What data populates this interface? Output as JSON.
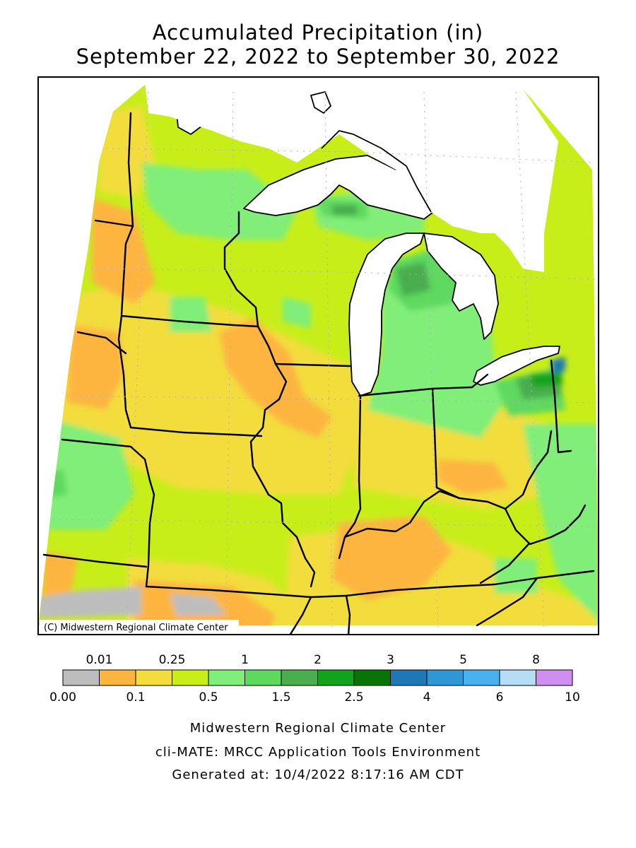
{
  "title": {
    "line1": "Accumulated Precipitation (in)",
    "line2": "September 22, 2022 to September 30, 2022"
  },
  "map": {
    "credit": "(C) Midwestern Regional Climate Center",
    "lake_color": "#ffffff",
    "border_color": "#000000",
    "grid_color": "#b6a6d6"
  },
  "legend": {
    "upper_labels": [
      "0.01",
      "0.25",
      "1",
      "2",
      "3",
      "5",
      "8"
    ],
    "lower_labels": [
      "0.00",
      "0.1",
      "0.5",
      "1.5",
      "2.5",
      "4",
      "6",
      "10"
    ],
    "colors": [
      "#bdbdbd",
      "#fdb53f",
      "#f2dd3c",
      "#c8ee1a",
      "#80ee78",
      "#5ed95e",
      "#4aad4e",
      "#12a31a",
      "#067506",
      "#1d78b5",
      "#2e98d4",
      "#47b2ec",
      "#b6dcf6",
      "#cf8ef0"
    ]
  },
  "footer": {
    "line1": "Midwestern Regional Climate Center",
    "line2": "cli-MATE: MRCC Application Tools Environment",
    "line3": "Generated at: 10/4/2022 8:17:16 AM CDT"
  }
}
